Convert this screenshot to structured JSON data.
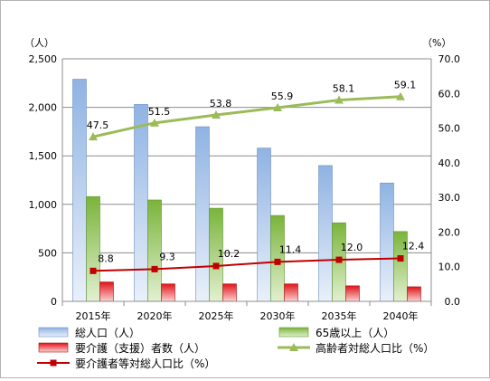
{
  "chart_data": {
    "type": "bar",
    "categories": [
      "2015年",
      "2020年",
      "2025年",
      "2030年",
      "2035年",
      "2040年"
    ],
    "left_axis": {
      "unit": "（人）",
      "ylim": [
        0,
        2500
      ],
      "ticks": [
        "0",
        "500",
        "1,000",
        "1,500",
        "2,000",
        "2,500"
      ]
    },
    "right_axis": {
      "unit": "（%）",
      "ylim": [
        0,
        70
      ],
      "ticks": [
        "0.0",
        "10.0",
        "20.0",
        "30.0",
        "40.0",
        "50.0",
        "60.0",
        "70.0"
      ]
    },
    "series": [
      {
        "name": "総人口（人）",
        "kind": "bar",
        "axis": "left",
        "color": "#b9cdea",
        "values": [
          2290,
          2030,
          1800,
          1580,
          1400,
          1220
        ]
      },
      {
        "name": "65歳以上（人）",
        "kind": "bar",
        "axis": "left",
        "color": "#86c040",
        "values": [
          1080,
          1045,
          960,
          885,
          810,
          720
        ]
      },
      {
        "name": "要介護（支援）者数（人）",
        "kind": "bar",
        "axis": "left",
        "color": "#e8161b",
        "values": [
          200,
          180,
          180,
          180,
          160,
          150
        ]
      },
      {
        "name": "高齢者対総人口比（%）",
        "kind": "line",
        "axis": "right",
        "color": "#9bbb59",
        "values": [
          47.5,
          51.5,
          53.8,
          55.9,
          58.1,
          59.1
        ],
        "labels": [
          "47.5",
          "51.5",
          "53.8",
          "55.9",
          "58.1",
          "59.1"
        ]
      },
      {
        "name": "要介護者等対総人口比（%）",
        "kind": "line",
        "axis": "right",
        "color": "#c00000",
        "values": [
          8.8,
          9.3,
          10.2,
          11.4,
          12.0,
          12.4
        ],
        "labels": [
          "8.8",
          "9.3",
          "10.2",
          "11.4",
          "12.0",
          "12.4"
        ]
      }
    ],
    "grid": true,
    "legend": "bottom"
  }
}
